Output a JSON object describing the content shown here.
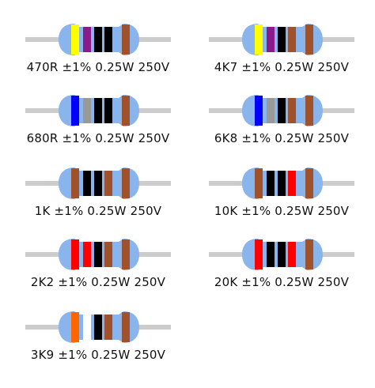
{
  "colors": {
    "body": "#8ab4ec",
    "lead": "#cccccc",
    "yellow": "#ffff00",
    "violet": "#8b1a8b",
    "black": "#000000",
    "brown": "#a0522d",
    "blue": "#0000ff",
    "grey": "#999999",
    "red": "#ff0000",
    "orange": "#ff6600",
    "white": "#ffffff"
  },
  "resistors": [
    {
      "label": "470R ±1% 0.25W 250V",
      "bands": [
        "yellow",
        "violet",
        "black",
        "black",
        "brown"
      ]
    },
    {
      "label": "4K7 ±1% 0.25W 250V",
      "bands": [
        "yellow",
        "violet",
        "black",
        "brown",
        "brown"
      ]
    },
    {
      "label": "680R ±1% 0.25W 250V",
      "bands": [
        "blue",
        "grey",
        "black",
        "black",
        "brown"
      ]
    },
    {
      "label": "6K8 ±1% 0.25W 250V",
      "bands": [
        "blue",
        "grey",
        "black",
        "brown",
        "brown"
      ]
    },
    {
      "label": "1K ±1% 0.25W 250V",
      "bands": [
        "brown",
        "black",
        "black",
        "brown",
        "brown"
      ]
    },
    {
      "label": "10K ±1% 0.25W 250V",
      "bands": [
        "brown",
        "black",
        "black",
        "red",
        "brown"
      ]
    },
    {
      "label": "2K2 ±1% 0.25W 250V",
      "bands": [
        "red",
        "red",
        "black",
        "brown",
        "brown"
      ]
    },
    {
      "label": "20K ±1% 0.25W 250V",
      "bands": [
        "red",
        "black",
        "black",
        "red",
        "brown"
      ]
    },
    {
      "label": "3K9 ±1% 0.25W 250V",
      "bands": [
        "orange",
        "white",
        "black",
        "brown",
        "brown"
      ]
    }
  ]
}
